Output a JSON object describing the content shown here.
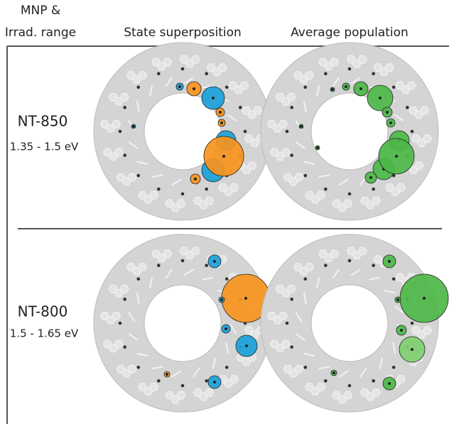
{
  "header": {
    "col1": [
      "MNP &",
      "Irrad. range"
    ],
    "col2": "State superposition",
    "col3": "Average population"
  },
  "rows": [
    {
      "name": "NT-850",
      "range": "1.35 - 1.5 eV"
    },
    {
      "name": "NT-800",
      "range": "1.5 - 1.65 eV"
    }
  ]
}
